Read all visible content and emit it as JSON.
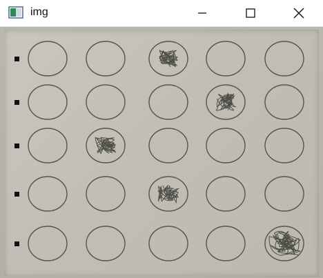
{
  "window": {
    "title": "img",
    "icon": "image-window-icon",
    "controls": [
      "minimize-icon",
      "maximize-icon",
      "close-icon"
    ]
  },
  "sheet": {
    "rows": 5,
    "columns": 5,
    "filled": [
      3,
      4,
      2,
      3,
      5
    ]
  },
  "colors": {
    "titlebar": "#ffffff",
    "sheet": "#c4c2b9",
    "bubble_outline": "#55544d",
    "scribble": "#3a3934"
  }
}
